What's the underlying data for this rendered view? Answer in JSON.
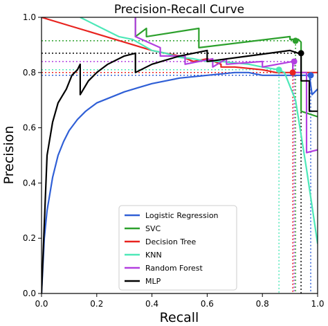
{
  "chart_data": {
    "type": "line",
    "title": "Precision-Recall Curve",
    "xlabel": "Recall",
    "ylabel": "Precision",
    "xlim": [
      0,
      1
    ],
    "ylim": [
      0,
      1
    ],
    "xticks": [
      "0.0",
      "0.2",
      "0.4",
      "0.6",
      "0.8",
      "1.0"
    ],
    "yticks": [
      "0.0",
      "0.2",
      "0.4",
      "0.6",
      "0.8",
      "1.0"
    ],
    "grid": false,
    "legend_position": "lower-center",
    "series": [
      {
        "name": "Logistic Regression",
        "color": "#2f5fd6",
        "x": [
          0.0,
          0.01,
          0.02,
          0.04,
          0.06,
          0.08,
          0.1,
          0.13,
          0.16,
          0.2,
          0.25,
          0.3,
          0.35,
          0.4,
          0.45,
          0.5,
          0.55,
          0.6,
          0.65,
          0.7,
          0.75,
          0.8,
          0.85,
          0.9,
          0.93,
          0.95,
          0.96,
          0.97,
          0.98,
          1.0
        ],
        "y": [
          0.0,
          0.2,
          0.3,
          0.42,
          0.5,
          0.55,
          0.59,
          0.63,
          0.66,
          0.69,
          0.71,
          0.73,
          0.745,
          0.76,
          0.77,
          0.78,
          0.785,
          0.79,
          0.795,
          0.8,
          0.8,
          0.79,
          0.79,
          0.79,
          0.79,
          0.79,
          0.79,
          0.79,
          0.72,
          0.74
        ],
        "marker": {
          "x": 0.975,
          "y": 0.79
        }
      },
      {
        "name": "SVC",
        "color": "#2ca02c",
        "x": [
          0.34,
          0.34,
          0.38,
          0.38,
          0.57,
          0.57,
          0.9,
          0.9,
          0.93,
          0.94,
          0.94,
          1.0
        ],
        "y": [
          1.0,
          0.93,
          0.96,
          0.93,
          0.96,
          0.89,
          0.93,
          0.92,
          0.92,
          0.91,
          0.66,
          0.64
        ],
        "marker": {
          "x": 0.92,
          "y": 0.915
        }
      },
      {
        "name": "Decision Tree",
        "color": "#e8231f",
        "x": [
          0.0,
          0.1,
          0.2,
          0.3,
          0.4,
          0.5,
          0.55,
          0.6,
          0.65,
          0.65,
          0.7,
          0.8,
          0.85,
          0.9,
          0.95,
          1.0
        ],
        "y": [
          1.0,
          0.97,
          0.94,
          0.91,
          0.88,
          0.86,
          0.84,
          0.85,
          0.83,
          0.82,
          0.82,
          0.81,
          0.8,
          0.8,
          0.8,
          0.8
        ],
        "marker": {
          "x": 0.91,
          "y": 0.8
        }
      },
      {
        "name": "KNN",
        "color": "#4de8b8",
        "x": [
          0.14,
          0.2,
          0.28,
          0.33,
          0.4,
          0.45,
          0.5,
          0.55,
          0.6,
          0.65,
          0.7,
          0.75,
          0.8,
          0.86,
          0.88,
          0.92,
          0.96,
          1.0
        ],
        "y": [
          1.0,
          0.97,
          0.93,
          0.92,
          0.88,
          0.87,
          0.855,
          0.85,
          0.84,
          0.84,
          0.835,
          0.83,
          0.82,
          0.81,
          0.8,
          0.7,
          0.45,
          0.18
        ],
        "marker": {
          "x": 0.86,
          "y": 0.81
        }
      },
      {
        "name": "Random Forest",
        "color": "#b23fe0",
        "x": [
          0.34,
          0.34,
          0.43,
          0.43,
          0.52,
          0.52,
          0.62,
          0.62,
          0.67,
          0.67,
          0.8,
          0.8,
          0.91,
          0.91,
          0.96,
          0.96,
          1.0
        ],
        "y": [
          1.0,
          0.93,
          0.89,
          0.86,
          0.86,
          0.83,
          0.85,
          0.82,
          0.85,
          0.83,
          0.84,
          0.82,
          0.84,
          0.8,
          0.8,
          0.51,
          0.52
        ],
        "marker": {
          "x": 0.915,
          "y": 0.84
        }
      },
      {
        "name": "MLP",
        "color": "#000000",
        "x": [
          0.0,
          0.02,
          0.04,
          0.06,
          0.09,
          0.11,
          0.13,
          0.14,
          0.14,
          0.17,
          0.2,
          0.24,
          0.3,
          0.34,
          0.34,
          0.4,
          0.5,
          0.6,
          0.6,
          0.75,
          0.9,
          0.93,
          0.94,
          0.94,
          0.97,
          0.97,
          1.0
        ],
        "y": [
          0.0,
          0.5,
          0.62,
          0.69,
          0.74,
          0.79,
          0.81,
          0.83,
          0.72,
          0.77,
          0.8,
          0.83,
          0.86,
          0.87,
          0.8,
          0.83,
          0.86,
          0.88,
          0.84,
          0.86,
          0.88,
          0.87,
          0.86,
          0.77,
          0.77,
          0.66,
          0.66
        ],
        "marker": {
          "x": 0.94,
          "y": 0.87
        }
      }
    ],
    "legend": [
      "Logistic Regression",
      "SVC",
      "Decision Tree",
      "KNN",
      "Random Forest",
      "MLP"
    ]
  }
}
